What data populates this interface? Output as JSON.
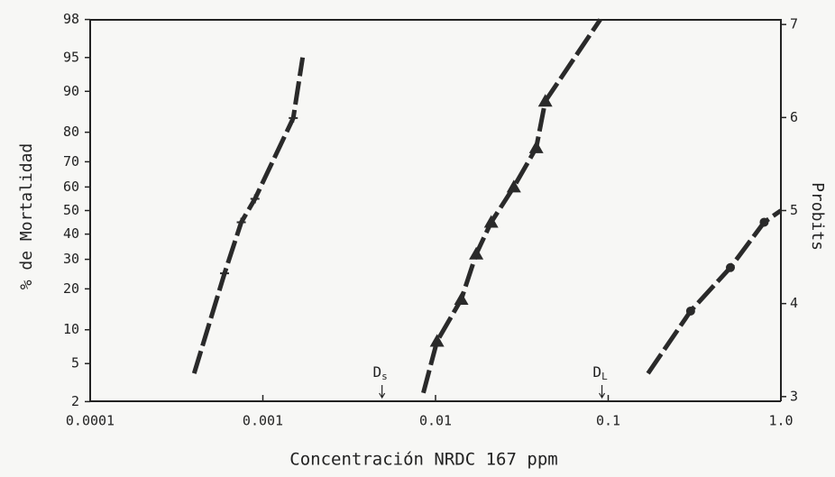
{
  "chart_data": {
    "type": "line",
    "x_label": "Concentración NRDC 167 ppm",
    "y_label": "% de Mortalidad",
    "y2_label": "Probits",
    "xscale": "log",
    "yscale": "probit",
    "xlim": [
      0.0001,
      1.0
    ],
    "xticks": [
      0.0001,
      0.001,
      0.01,
      0.1,
      {
        "value": 1,
        "label": "1.0"
      }
    ],
    "ylim": [
      2,
      98
    ],
    "yticks": [
      2,
      5,
      10,
      20,
      30,
      40,
      50,
      60,
      70,
      80,
      90,
      95,
      98
    ],
    "y2lim": [
      2.95,
      7.05
    ],
    "y2ticks": [
      3,
      4,
      5,
      6,
      7
    ],
    "series": [
      {
        "marker": "plus",
        "color": "#2a2a2a",
        "x": [
          0.0004,
          0.0006,
          0.00075,
          0.0009,
          0.0015,
          0.0017
        ],
        "values": [
          4,
          25,
          45,
          55,
          84,
          95
        ]
      },
      {
        "marker": "triangle",
        "color": "#2a2a2a",
        "x": [
          0.0085,
          0.0102,
          0.0141,
          0.0172,
          0.021,
          0.0284,
          0.0383,
          0.0432,
          0.09
        ],
        "values": [
          2.5,
          8,
          17,
          32,
          45,
          60,
          75,
          88,
          98
        ]
      },
      {
        "marker": "circle",
        "color": "#2a2a2a",
        "x": [
          0.17,
          0.3,
          0.51,
          0.8,
          1.0
        ],
        "values": [
          4,
          14,
          27,
          45,
          50
        ]
      }
    ],
    "annotations": [
      {
        "text": "D",
        "sub": "s",
        "x": 0.0049
      },
      {
        "text": "D",
        "sub": "L",
        "x": 0.092
      }
    ]
  }
}
